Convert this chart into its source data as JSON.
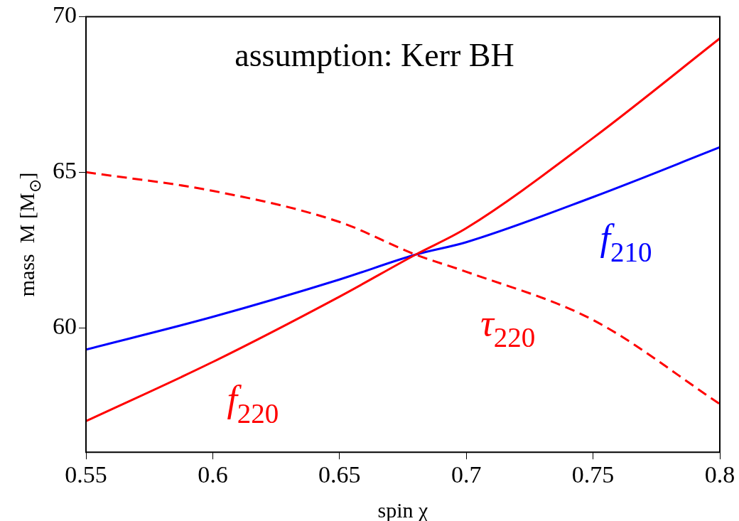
{
  "chart_data": {
    "type": "line",
    "title": "assumption: Kerr BH",
    "xlabel": "spin χ",
    "ylabel": "mass  M [M$_{⊙}$]",
    "x": [
      0.55,
      0.6,
      0.65,
      0.68,
      0.7,
      0.75,
      0.8
    ],
    "series": [
      {
        "name": "f$_{220}$",
        "color": "#ff0000",
        "values": [
          57.0,
          58.9,
          61.0,
          62.35,
          63.2,
          66.1,
          69.3
        ],
        "line_style": "solid"
      },
      {
        "name": "f$_{210}$",
        "color": "#0000ff",
        "values": [
          59.3,
          60.35,
          61.55,
          62.35,
          62.75,
          64.2,
          65.8
        ],
        "line_style": "solid"
      },
      {
        "name": "τ$_{220}$",
        "color": "#ff0000",
        "values": [
          65.0,
          64.4,
          63.4,
          62.35,
          61.8,
          60.25,
          57.55
        ],
        "line_style": "dashed"
      }
    ],
    "xlim": [
      0.55,
      0.8
    ],
    "xticks": [
      0.55,
      0.6,
      0.65,
      0.7,
      0.75,
      0.8
    ],
    "ylim": [
      56,
      70
    ],
    "yticks": [
      60,
      65,
      70
    ],
    "grid": false,
    "legend": false,
    "marker": "none"
  }
}
